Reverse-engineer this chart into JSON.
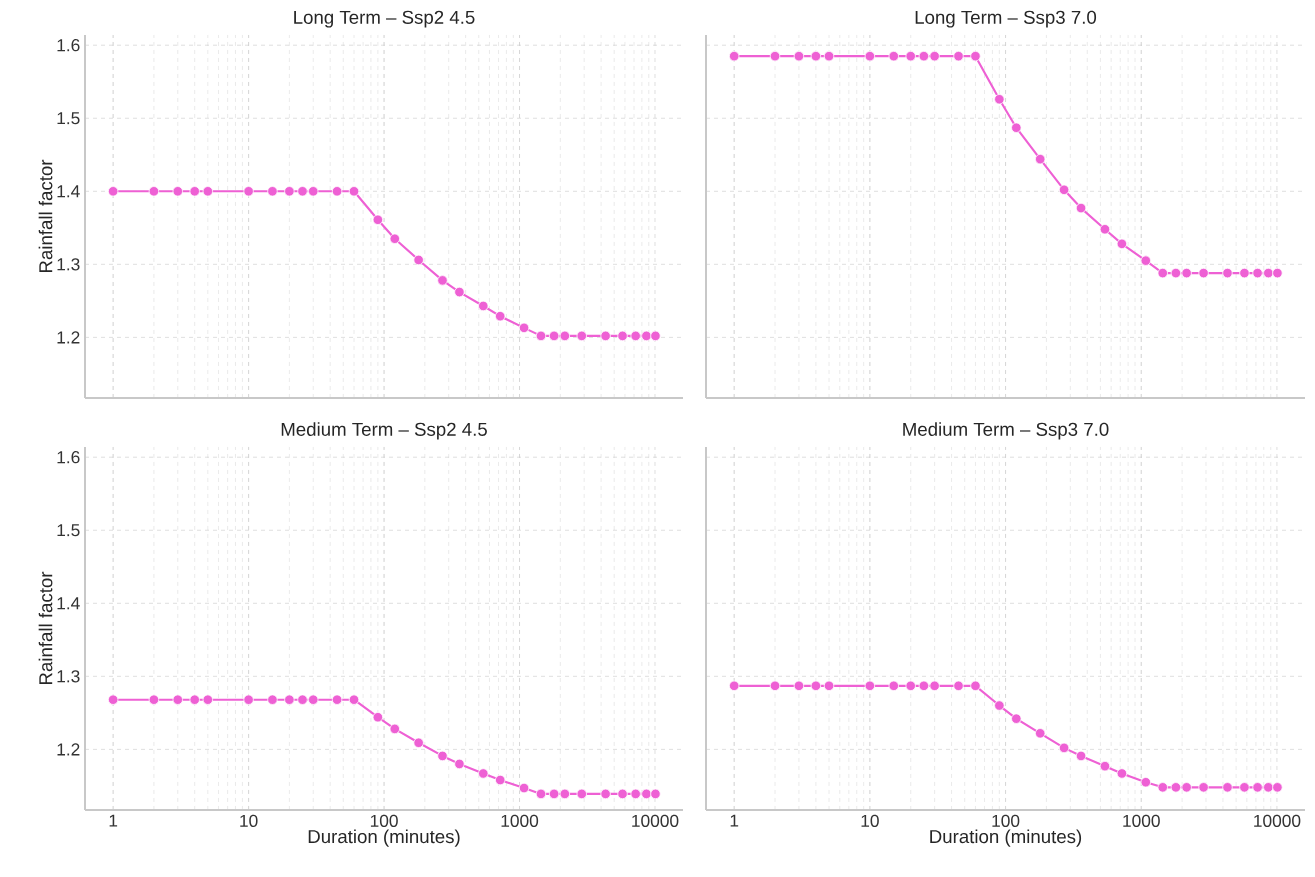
{
  "chart_data": [
    {
      "type": "line",
      "title": "Long Term – Ssp2 4.5",
      "ylabel": "Rainfall factor",
      "color": "#ee60d4",
      "marker": "circle",
      "grid": true,
      "log": "x",
      "tick_labels": "y",
      "x": [
        1,
        2,
        3,
        4,
        5,
        10,
        15,
        20,
        25,
        30,
        45,
        60,
        90,
        120,
        180,
        270,
        360,
        540,
        720,
        1080,
        1440,
        1800,
        2160,
        2880,
        4320,
        5760,
        7200,
        8640,
        10080
      ],
      "values": [
        1.4,
        1.4,
        1.4,
        1.4,
        1.4,
        1.4,
        1.4,
        1.4,
        1.4,
        1.4,
        1.4,
        1.4,
        1.361,
        1.335,
        1.306,
        1.278,
        1.262,
        1.243,
        1.229,
        1.213,
        1.202,
        1.202,
        1.202,
        1.202,
        1.202,
        1.202,
        1.202,
        1.202,
        1.202
      ],
      "xlim": [
        0.62,
        16100
      ],
      "ylim": [
        1.117,
        1.614
      ],
      "xticks": [
        1,
        10,
        100,
        1000,
        10000
      ],
      "yticks": [
        1.2,
        1.3,
        1.4,
        1.5,
        1.6
      ]
    },
    {
      "type": "line",
      "title": "Long Term – Ssp3 7.0",
      "color": "#ee60d4",
      "marker": "circle",
      "grid": true,
      "log": "x",
      "tick_labels": false,
      "x": [
        1,
        2,
        3,
        4,
        5,
        10,
        15,
        20,
        25,
        30,
        45,
        60,
        90,
        120,
        180,
        270,
        360,
        540,
        720,
        1080,
        1440,
        1800,
        2160,
        2880,
        4320,
        5760,
        7200,
        8640,
        10080
      ],
      "values": [
        1.585,
        1.585,
        1.585,
        1.585,
        1.585,
        1.585,
        1.585,
        1.585,
        1.585,
        1.585,
        1.585,
        1.585,
        1.526,
        1.487,
        1.444,
        1.402,
        1.377,
        1.348,
        1.328,
        1.305,
        1.288,
        1.288,
        1.288,
        1.288,
        1.288,
        1.288,
        1.288,
        1.288,
        1.288
      ],
      "xlim": [
        0.62,
        16100
      ],
      "ylim": [
        1.117,
        1.614
      ],
      "xticks": [
        1,
        10,
        100,
        1000,
        10000
      ],
      "yticks": [
        1.2,
        1.3,
        1.4,
        1.5,
        1.6
      ]
    },
    {
      "type": "line",
      "title": "Medium Term – Ssp2 4.5",
      "xlabel": "Duration (minutes)",
      "ylabel": "Rainfall factor",
      "color": "#ee60d4",
      "marker": "circle",
      "grid": true,
      "log": "x",
      "x": [
        1,
        2,
        3,
        4,
        5,
        10,
        15,
        20,
        25,
        30,
        45,
        60,
        90,
        120,
        180,
        270,
        360,
        540,
        720,
        1080,
        1440,
        1800,
        2160,
        2880,
        4320,
        5760,
        7200,
        8640,
        10080
      ],
      "values": [
        1.268,
        1.268,
        1.268,
        1.268,
        1.268,
        1.268,
        1.268,
        1.268,
        1.268,
        1.268,
        1.268,
        1.268,
        1.244,
        1.228,
        1.209,
        1.191,
        1.18,
        1.167,
        1.158,
        1.147,
        1.139,
        1.139,
        1.139,
        1.139,
        1.139,
        1.139,
        1.139,
        1.139,
        1.139
      ],
      "xlim": [
        0.62,
        16100
      ],
      "ylim": [
        1.117,
        1.614
      ],
      "xticks": [
        1,
        10,
        100,
        1000,
        10000
      ],
      "yticks": [
        1.2,
        1.3,
        1.4,
        1.5,
        1.6
      ]
    },
    {
      "type": "line",
      "title": "Medium Term – Ssp3 7.0",
      "xlabel": "Duration (minutes)",
      "color": "#ee60d4",
      "marker": "circle",
      "grid": true,
      "log": "x",
      "tick_labels": "x",
      "x": [
        1,
        2,
        3,
        4,
        5,
        10,
        15,
        20,
        25,
        30,
        45,
        60,
        90,
        120,
        180,
        270,
        360,
        540,
        720,
        1080,
        1440,
        1800,
        2160,
        2880,
        4320,
        5760,
        7200,
        8640,
        10080
      ],
      "values": [
        1.287,
        1.287,
        1.287,
        1.287,
        1.287,
        1.287,
        1.287,
        1.287,
        1.287,
        1.287,
        1.287,
        1.287,
        1.26,
        1.242,
        1.222,
        1.202,
        1.191,
        1.177,
        1.167,
        1.155,
        1.148,
        1.148,
        1.148,
        1.148,
        1.148,
        1.148,
        1.148,
        1.148,
        1.148
      ],
      "xlim": [
        0.62,
        16100
      ],
      "ylim": [
        1.117,
        1.614
      ],
      "xticks": [
        1,
        10,
        100,
        1000,
        10000
      ],
      "yticks": [
        1.2,
        1.3,
        1.4,
        1.5,
        1.6
      ]
    }
  ]
}
